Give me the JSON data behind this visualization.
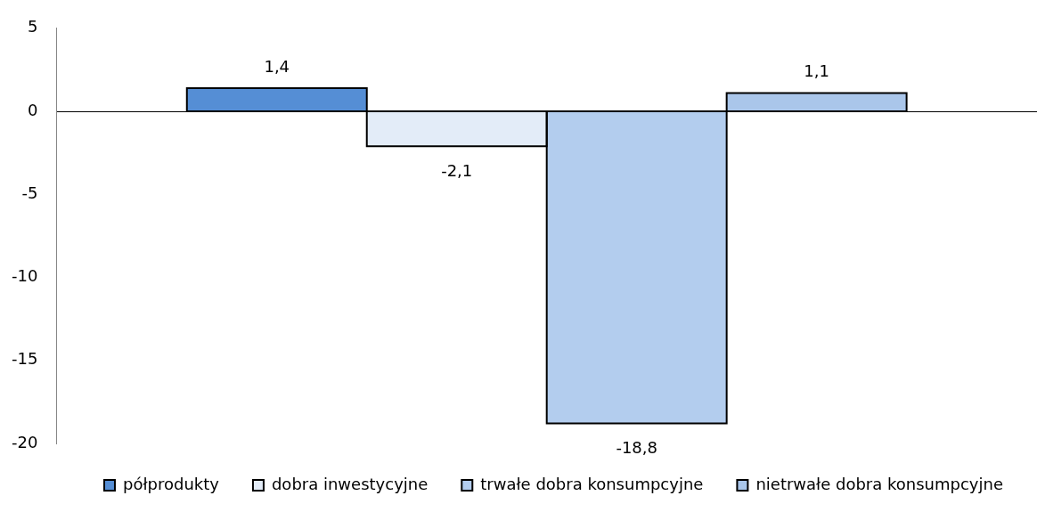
{
  "chart_data": {
    "type": "bar",
    "categories": [
      null
    ],
    "series": [
      {
        "name": "półprodukty",
        "color": "#558ed5",
        "values": [
          1.4
        ],
        "value_labels": [
          "1,4"
        ]
      },
      {
        "name": "dobra inwestycyjne",
        "color": "#e3ecf8",
        "values": [
          -2.1
        ],
        "value_labels": [
          "-2,1"
        ]
      },
      {
        "name": "trwałe dobra konsumpcyjne",
        "color": "#b3cdee",
        "values": [
          -18.8
        ],
        "value_labels": [
          "-18,8"
        ]
      },
      {
        "name": "nietrwałe dobra konsumpcyjne",
        "color": "#aac6ea",
        "values": [
          1.1
        ],
        "value_labels": [
          "1,1"
        ]
      }
    ],
    "ylim": [
      -20,
      5
    ],
    "yticks": [
      -20,
      -15,
      -10,
      -5,
      0,
      5
    ],
    "legend": "bottom",
    "tick_labels": "y"
  }
}
